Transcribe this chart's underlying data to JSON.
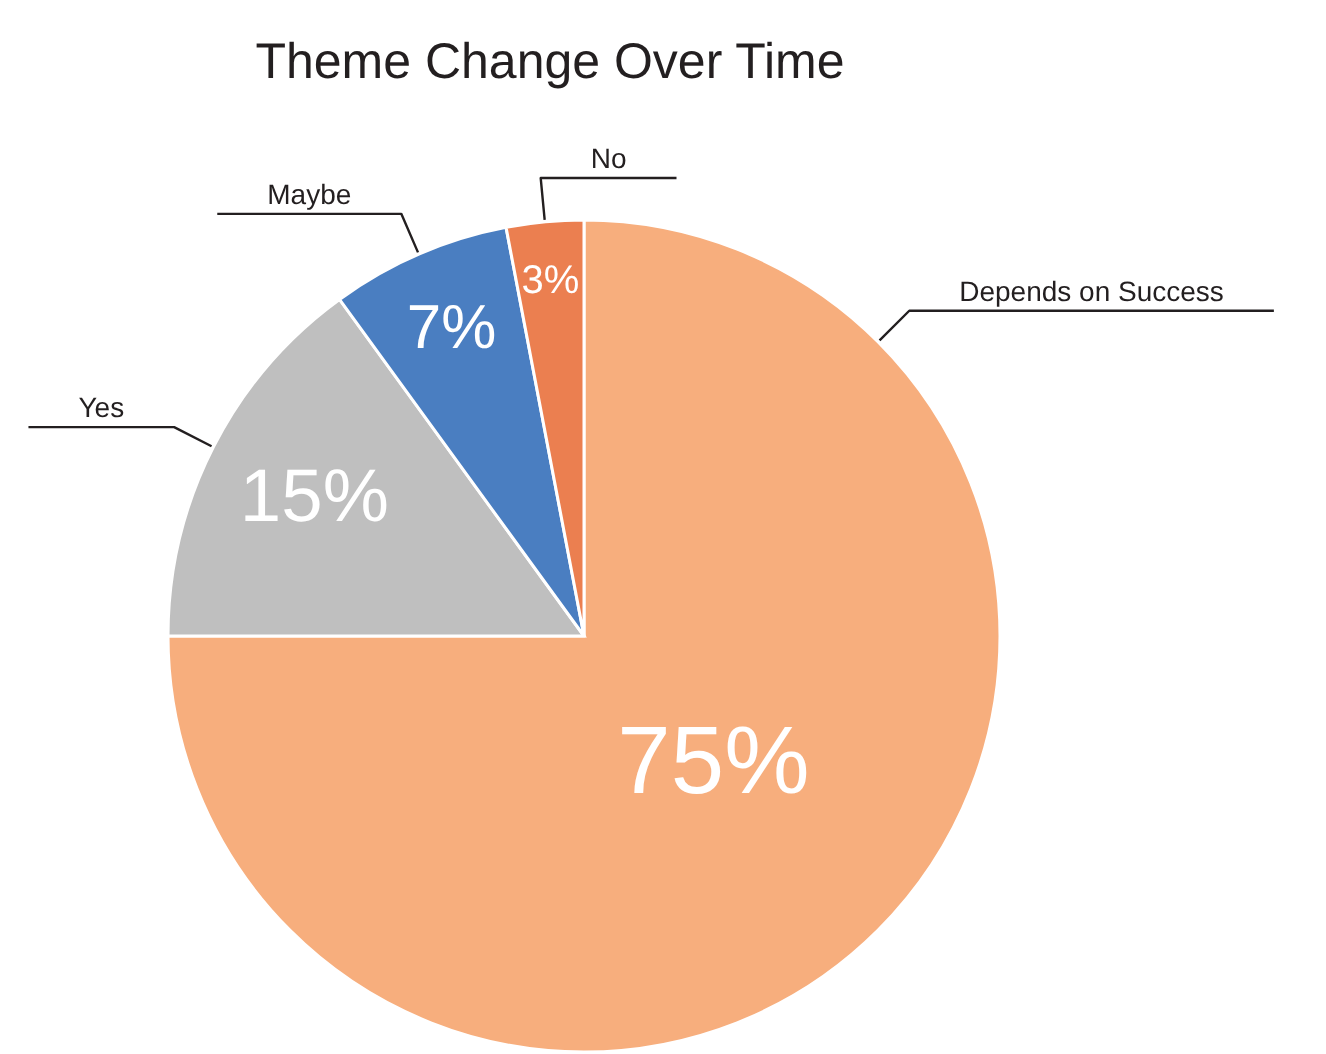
{
  "chart_data": {
    "type": "pie",
    "title": "Theme Change Over Time",
    "categories": [
      "Depends on Success",
      "Yes",
      "Maybe",
      "No"
    ],
    "values": [
      75,
      15,
      7,
      3
    ],
    "colors": [
      "#f7ae7d",
      "#bfbfbf",
      "#4a7ec1",
      "#eb7f50"
    ],
    "value_labels": [
      "75%",
      "15%",
      "7%",
      "3%"
    ]
  }
}
